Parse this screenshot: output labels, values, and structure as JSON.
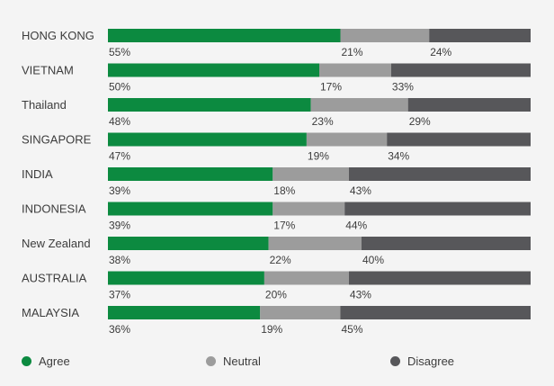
{
  "chart_data": {
    "type": "bar",
    "orientation": "horizontal",
    "stacked": true,
    "categories": [
      "HONG KONG",
      "VIETNAM",
      "Thailand",
      "SINGAPORE",
      "INDIA",
      "INDONESIA",
      "New Zealand",
      "AUSTRALIA",
      "MALAYSIA"
    ],
    "series": [
      {
        "name": "Agree",
        "color": "#0c8a40",
        "values": [
          55,
          50,
          48,
          47,
          39,
          39,
          38,
          37,
          36
        ]
      },
      {
        "name": "Neutral",
        "color": "#9c9c9c",
        "values": [
          21,
          17,
          23,
          19,
          18,
          17,
          22,
          20,
          19
        ]
      },
      {
        "name": "Disagree",
        "color": "#57575a",
        "values": [
          24,
          33,
          29,
          34,
          43,
          44,
          40,
          43,
          45
        ]
      }
    ],
    "value_suffix": "%",
    "xlim": [
      0,
      100
    ],
    "grid": false,
    "legend_position": "bottom"
  }
}
